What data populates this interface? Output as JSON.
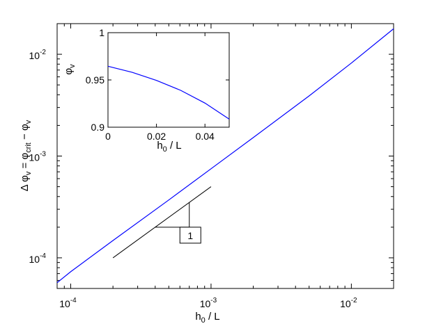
{
  "chart_data": [
    {
      "type": "line",
      "xscale": "log",
      "yscale": "log",
      "xlim": [
        8e-05,
        0.02
      ],
      "ylim": [
        5e-05,
        0.02
      ],
      "xticks": [
        {
          "base": "10",
          "exp": "-4",
          "value": 0.0001
        },
        {
          "base": "10",
          "exp": "-3",
          "value": 0.001
        },
        {
          "base": "10",
          "exp": "-2",
          "value": 0.01
        }
      ],
      "yticks": [
        {
          "base": "10",
          "exp": "-4",
          "value": 0.0001
        },
        {
          "base": "10",
          "exp": "-3",
          "value": 0.001
        },
        {
          "base": "10",
          "exp": "-2",
          "value": 0.01
        }
      ],
      "xlabel": {
        "main": "h",
        "sub": "0",
        "rest": " / L"
      },
      "ylabel": {
        "delta": "Δ φ",
        "sub1": "v",
        "eq": " = φ",
        "sub2": "crit",
        "minus": " − φ",
        "sub3": "v"
      },
      "series": [
        {
          "color": "#0000ff",
          "x": [
            8e-05,
            0.0001,
            0.0002,
            0.0005,
            0.001,
            0.002,
            0.005,
            0.01,
            0.02
          ],
          "y": [
            5.7e-05,
            7.3e-05,
            0.000148,
            0.00037,
            0.00075,
            0.00152,
            0.0039,
            0.0082,
            0.0178
          ]
        }
      ],
      "slope_reference": {
        "color": "#000000",
        "line": {
          "x": [
            0.0002,
            0.001
          ],
          "y": [
            0.0001,
            0.0005
          ]
        },
        "triangle": {
          "x": [
            0.0004,
            0.0007
          ],
          "y": [
            0.0002,
            0.00035
          ]
        },
        "label": "1",
        "label_box_anchor": {
          "x": 0.0006,
          "y": 0.0002
        }
      }
    },
    {
      "type": "line",
      "inset": true,
      "xlim": [
        0,
        0.05
      ],
      "ylim": [
        0.9,
        1
      ],
      "xticks": [
        "0",
        "0.02",
        "0.04"
      ],
      "xtick_values": [
        0,
        0.02,
        0.04
      ],
      "yticks": [
        "0.9",
        "0.95",
        "1"
      ],
      "ytick_values": [
        0.9,
        0.95,
        1
      ],
      "xlabel": {
        "main": "h",
        "sub": "0",
        "rest": " / L"
      },
      "ylabel": {
        "main": "φ",
        "sub": "v"
      },
      "series": [
        {
          "color": "#0000ff",
          "x": [
            0,
            0.01,
            0.02,
            0.03,
            0.04,
            0.05
          ],
          "y": [
            0.9645,
            0.958,
            0.9495,
            0.939,
            0.9255,
            0.9085
          ]
        }
      ]
    }
  ]
}
